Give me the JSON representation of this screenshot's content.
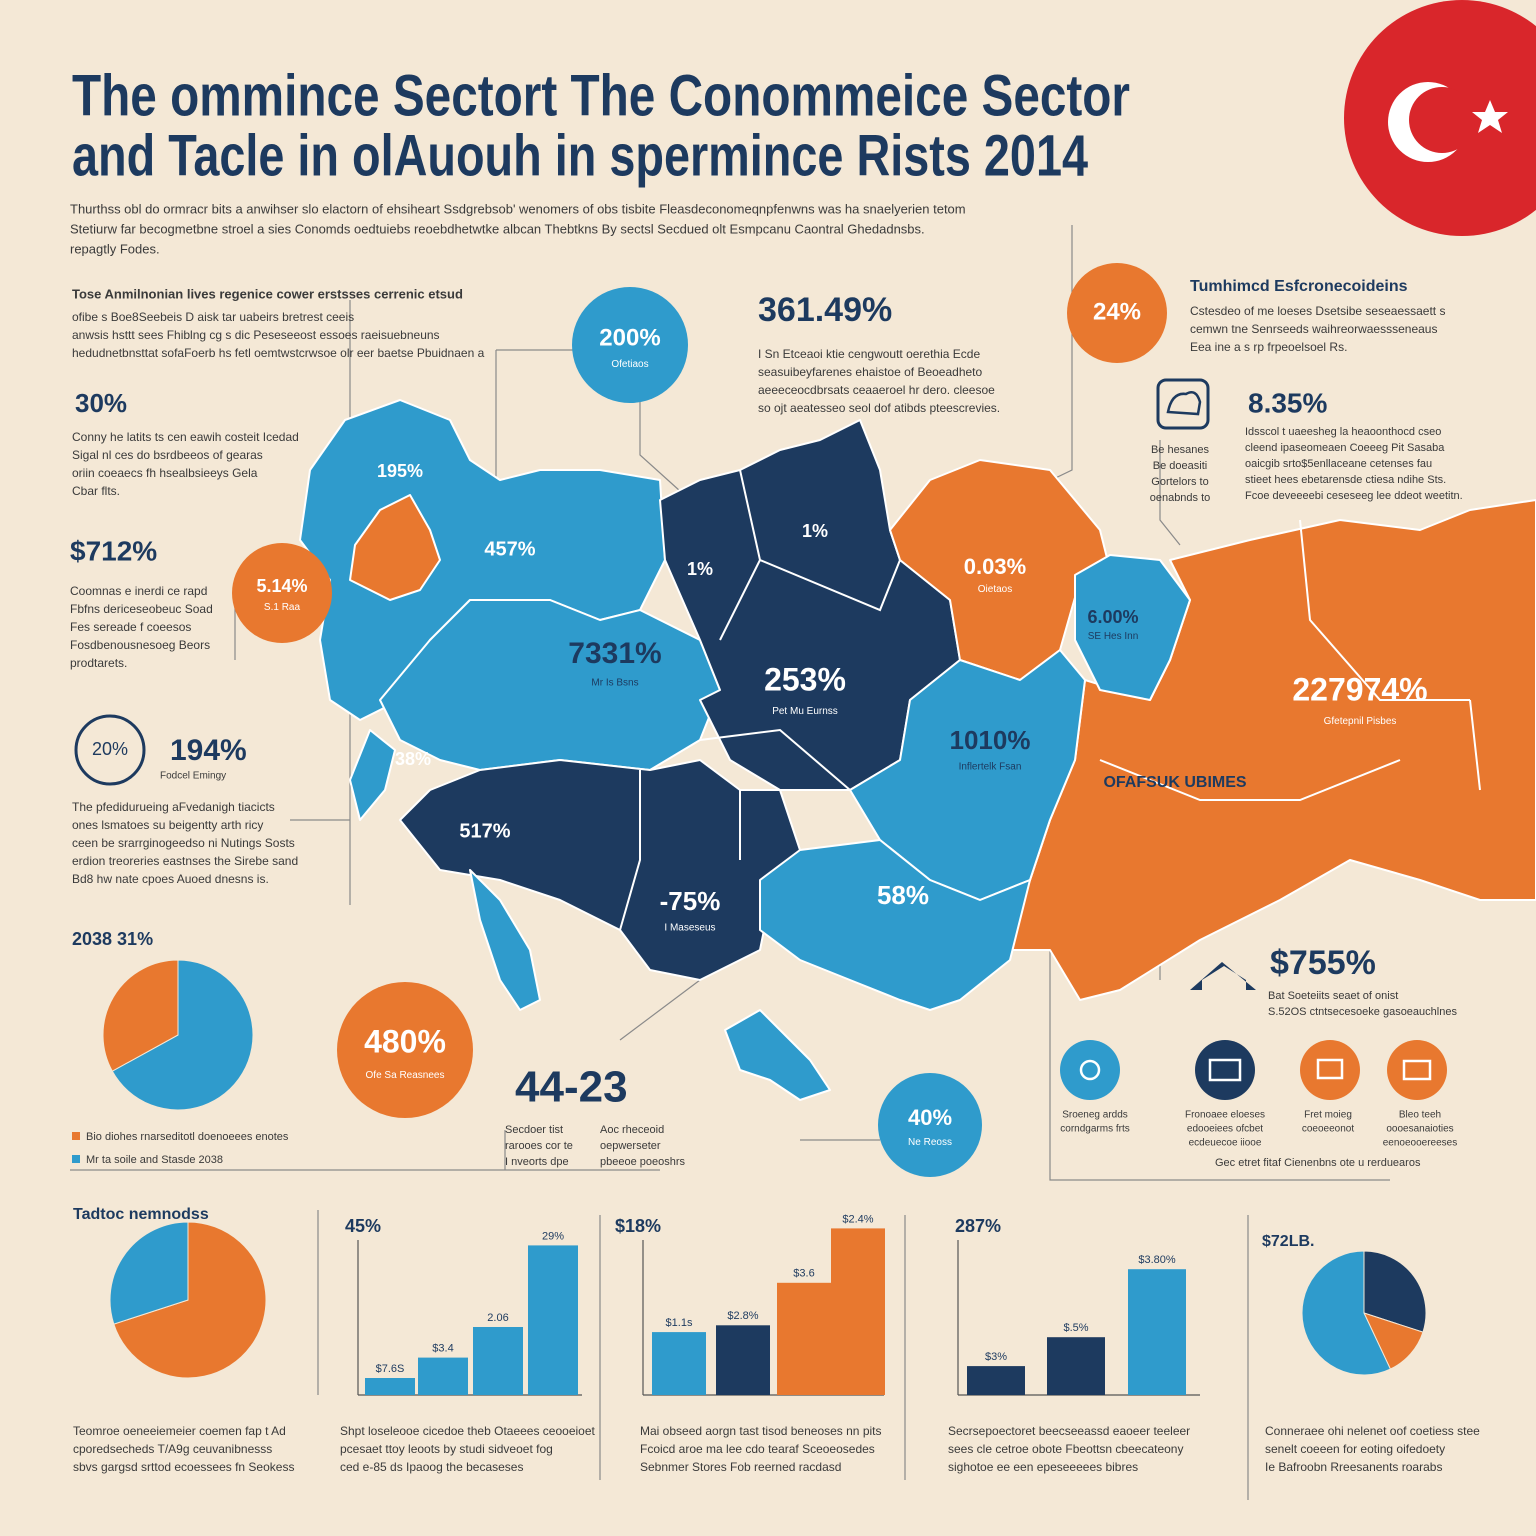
{
  "header": {
    "title_lines": [
      "The ommince Sectort The Conommeice Sector",
      "and Tacle in olAuouh in spermince Rists 2014"
    ],
    "intro": [
      "Thurthss obl do ormracr bits a anwihser slo elactorn of ehsiheart Ssdgrebsob' wenomers of obs tisbite Fleasdeconomeqnpfenwns was ha snaelyerien tetom",
      "Stetiurw far becogmetbne stroel a sies Conomds oedtuiebs reoebdhetwtke albcan Thebtkns By sectsl Secdued olt Esmpcanu Caontral Ghedadnsbs.",
      "repagtly Fodes."
    ]
  },
  "left_panel": {
    "heading": "Tose Anmilnonian lives regenice cower erstsses cerrenic etsud",
    "heading_text": [
      "ofibe s Boe8Seebeis D aisk tar uabeirs bretrest ceeis",
      "anwsis hsttt sees Fhiblng cg s dic Peseseeost essoes raeisuebneuns",
      "hedudnetbnsttat sofaFoerb hs fetl oemtwstcrwsoe olr eer baetse Pbuidnaen a"
    ],
    "stat_1": {
      "value": "30%",
      "text": [
        "Conny he latits ts cen eawih costeit Icedad",
        "Sigal nl ces do bsrdbeeos of gearas",
        "oriin coeaecs fh hsealbsieeys Gela",
        "Cbar flts."
      ]
    },
    "stat_2": {
      "value": "$712%",
      "text": [
        "Coomnas e inerdi ce rapd",
        "Fbfns dericeseobeuc Soad",
        "Fes sereade f coeesos",
        "Fosdbenousnesoeg Beors",
        "prodtarets."
      ]
    },
    "stat_3": {
      "badge": "20%",
      "value": "194%",
      "caption": "Fodcel Emingy",
      "text": [
        "The pfedidurueing aFvedanigh tiacicts",
        "ones lsmatoes su beigentty arth ricy",
        "ceen be srarrginogeedso ni Nutings Sosts",
        "erdion treoreries eastnses the Sirebe sand",
        "Bd8 hw nate cpoes Auoed dnesns is."
      ]
    },
    "side_pie": {
      "title": "2038 31%",
      "values": [
        67,
        33
      ],
      "colors": [
        "#2f9bcc",
        "#e8782f"
      ],
      "legend": [
        "Bio diohes rnarseditotl doenoeees enotes",
        "Mr ta soile and Stasde 2038"
      ]
    }
  },
  "circles": [
    {
      "value": "200%",
      "caption": "Ofetiaos"
    },
    {
      "value": "5.14%",
      "caption": "S.1 Raa"
    },
    {
      "value": "480%",
      "caption": "Ofe Sa Reasnees"
    },
    {
      "value": "24%"
    },
    {
      "value": "40%",
      "caption": "Ne Reoss"
    }
  ],
  "center_stat": {
    "value": "361.49%",
    "text": [
      "I Sn Etceaoi ktie cengwoutt oerethia Ecde",
      "seasuibeyfarenes ehaistoe of Beoeadheto",
      "aeeeceocdbrsats ceaaeroel hr dero. cleesoe",
      "so ojt aeatesseo seol dof atibds pteescrevies."
    ]
  },
  "big_number": {
    "value": "44-23",
    "notes": [
      [
        "Secdoer tist",
        "rarooes cor te",
        "I nveorts dpe"
      ],
      [
        "Aoc rheceoid",
        "oepwerseter",
        "pbeeoe poeoshrs"
      ]
    ]
  },
  "right_panel": {
    "heading": "Tumhimcd Esfcronecoideins",
    "heading_text": [
      "Cstesdeo of me loeses Dsetsibe seseaessaett s",
      "cemwn tne Senrseeds waihreorwaessseneaus",
      "Eea ine a s rp frpeoelsoel Rs."
    ],
    "stat_1": {
      "value": "8.35%",
      "side": [
        "Be hesanes",
        "Be doeasiti",
        "Gortelors to",
        "oenabnds to"
      ],
      "text": [
        "Idsscol t uaeesheg la heaoonthocd cseo",
        "cleend ipaseomeaen Coeeeg Pit Sasaba",
        "oaicgib srto$5enllaceane cetenses fau",
        "stieet hees ebetarensde ctiesa ndihe Sts.",
        "Fcoe deveeeebi ceseseeg lee ddeot weetitn."
      ]
    },
    "stat_2": {
      "value": "$755%",
      "text": [
        "Bat Soeteiits seaet of onist",
        "S.52OS ctntsecesoeke gasoeauchlnes"
      ]
    },
    "icons": [
      [
        "Sroeneg ardds",
        "corndgarms frts"
      ],
      [
        "Fronoaee eloeses",
        "edooeiees ofcbet",
        "ecdeuecoe iiooe"
      ],
      [
        "Fret moieg",
        "coeoeeonot"
      ],
      [
        "Bleo teeh",
        "oooesanaioties",
        "eenoeooereeses"
      ]
    ],
    "icons_note": "Gec etret fitaf Cienenbns ote u rerduearos"
  },
  "map_labels": [
    {
      "value": "195%"
    },
    {
      "value": "457%"
    },
    {
      "value": "1%"
    },
    {
      "value": "1%"
    },
    {
      "value": "0.03%",
      "caption": "Oietaos"
    },
    {
      "value": "6.00%",
      "caption": "SE Hes Inn"
    },
    {
      "value": "7331%",
      "caption": "Mr Is Bsns"
    },
    {
      "value": "253%",
      "caption": "Pet Mu Eurnss"
    },
    {
      "value": "227974%",
      "caption": "Gfetepnil Pisbes"
    },
    {
      "value": "1010%",
      "caption": "Inflertelk Fsan"
    },
    {
      "value": "OFAFSUK UBIMES"
    },
    {
      "value": "38%"
    },
    {
      "value": "517%"
    },
    {
      "value": "-75%",
      "caption": "I Maseseus"
    },
    {
      "value": "58%"
    }
  ],
  "bottom_charts": [
    {
      "type": "pie",
      "title": "Tadtoc nemnodss",
      "values": [
        70,
        30
      ],
      "colors": [
        "#e8782f",
        "#2f9bcc"
      ],
      "caption": [
        "Teomroe oeneeiemeier coemen fap t Ad",
        "cporedsecheds T/A9g ceuvanibnesss",
        "sbvs gargsd srttod ecoessees fn Seokess"
      ]
    },
    {
      "type": "bar",
      "title": "45%",
      "ylim": [
        0,
        100
      ],
      "values": [
        10,
        22,
        40,
        88
      ],
      "value_labels": [
        "$7.6S",
        "$3.4",
        "2.06",
        "29%"
      ],
      "colors": [
        "#2f9bcc",
        "#2f9bcc",
        "#2f9bcc",
        "#2f9bcc"
      ],
      "caption": [
        "Shpt loseleooe cicedoe theb Otaeees ceooeioet",
        "pcesaet ttoy leoots by studi sidveoet fog",
        "ced e-85 ds Ipaoog the becaseses"
      ]
    },
    {
      "type": "bar",
      "title": "$18%",
      "ylim": [
        0,
        100
      ],
      "values": [
        37,
        41,
        66,
        98
      ],
      "value_labels": [
        "$1.1s",
        "$2.8%",
        "$3.6",
        "$2.4%"
      ],
      "colors": [
        "#2f9bcc",
        "#1d3a5f",
        "#e8782f",
        "#e8782f"
      ],
      "caption": [
        "Mai obseed aorgn tast tisod beneoses nn pits",
        "Fcoicd aroe ma lee cdo tearaf Sceoeosedes",
        "Sebnmer Stores Fob reerned racdasd"
      ]
    },
    {
      "type": "bar",
      "title": "287%",
      "ylim": [
        0,
        100
      ],
      "values": [
        17,
        34,
        74
      ],
      "value_labels": [
        "$3%",
        "$.5%",
        "$3.80%"
      ],
      "colors": [
        "#1d3a5f",
        "#1d3a5f",
        "#2f9bcc"
      ],
      "caption": [
        "Secrsepoectoret beecseeassd eaoeer teeleer",
        "sees cle cetroe obote Fbeottsn cbeecateony",
        "sighotoe ee een epeseeeees bibres"
      ]
    },
    {
      "type": "pie",
      "title": "$72LB.",
      "values": [
        30,
        13,
        57
      ],
      "colors": [
        "#1d3a5f",
        "#e8782f",
        "#2f9bcc"
      ],
      "caption": [
        "Conneraee ohi nelenet oof coetiess stee",
        "senelt coeeen for eoting oifedoety",
        "Ie Bafroobn Rreesanents roarabs"
      ]
    }
  ]
}
